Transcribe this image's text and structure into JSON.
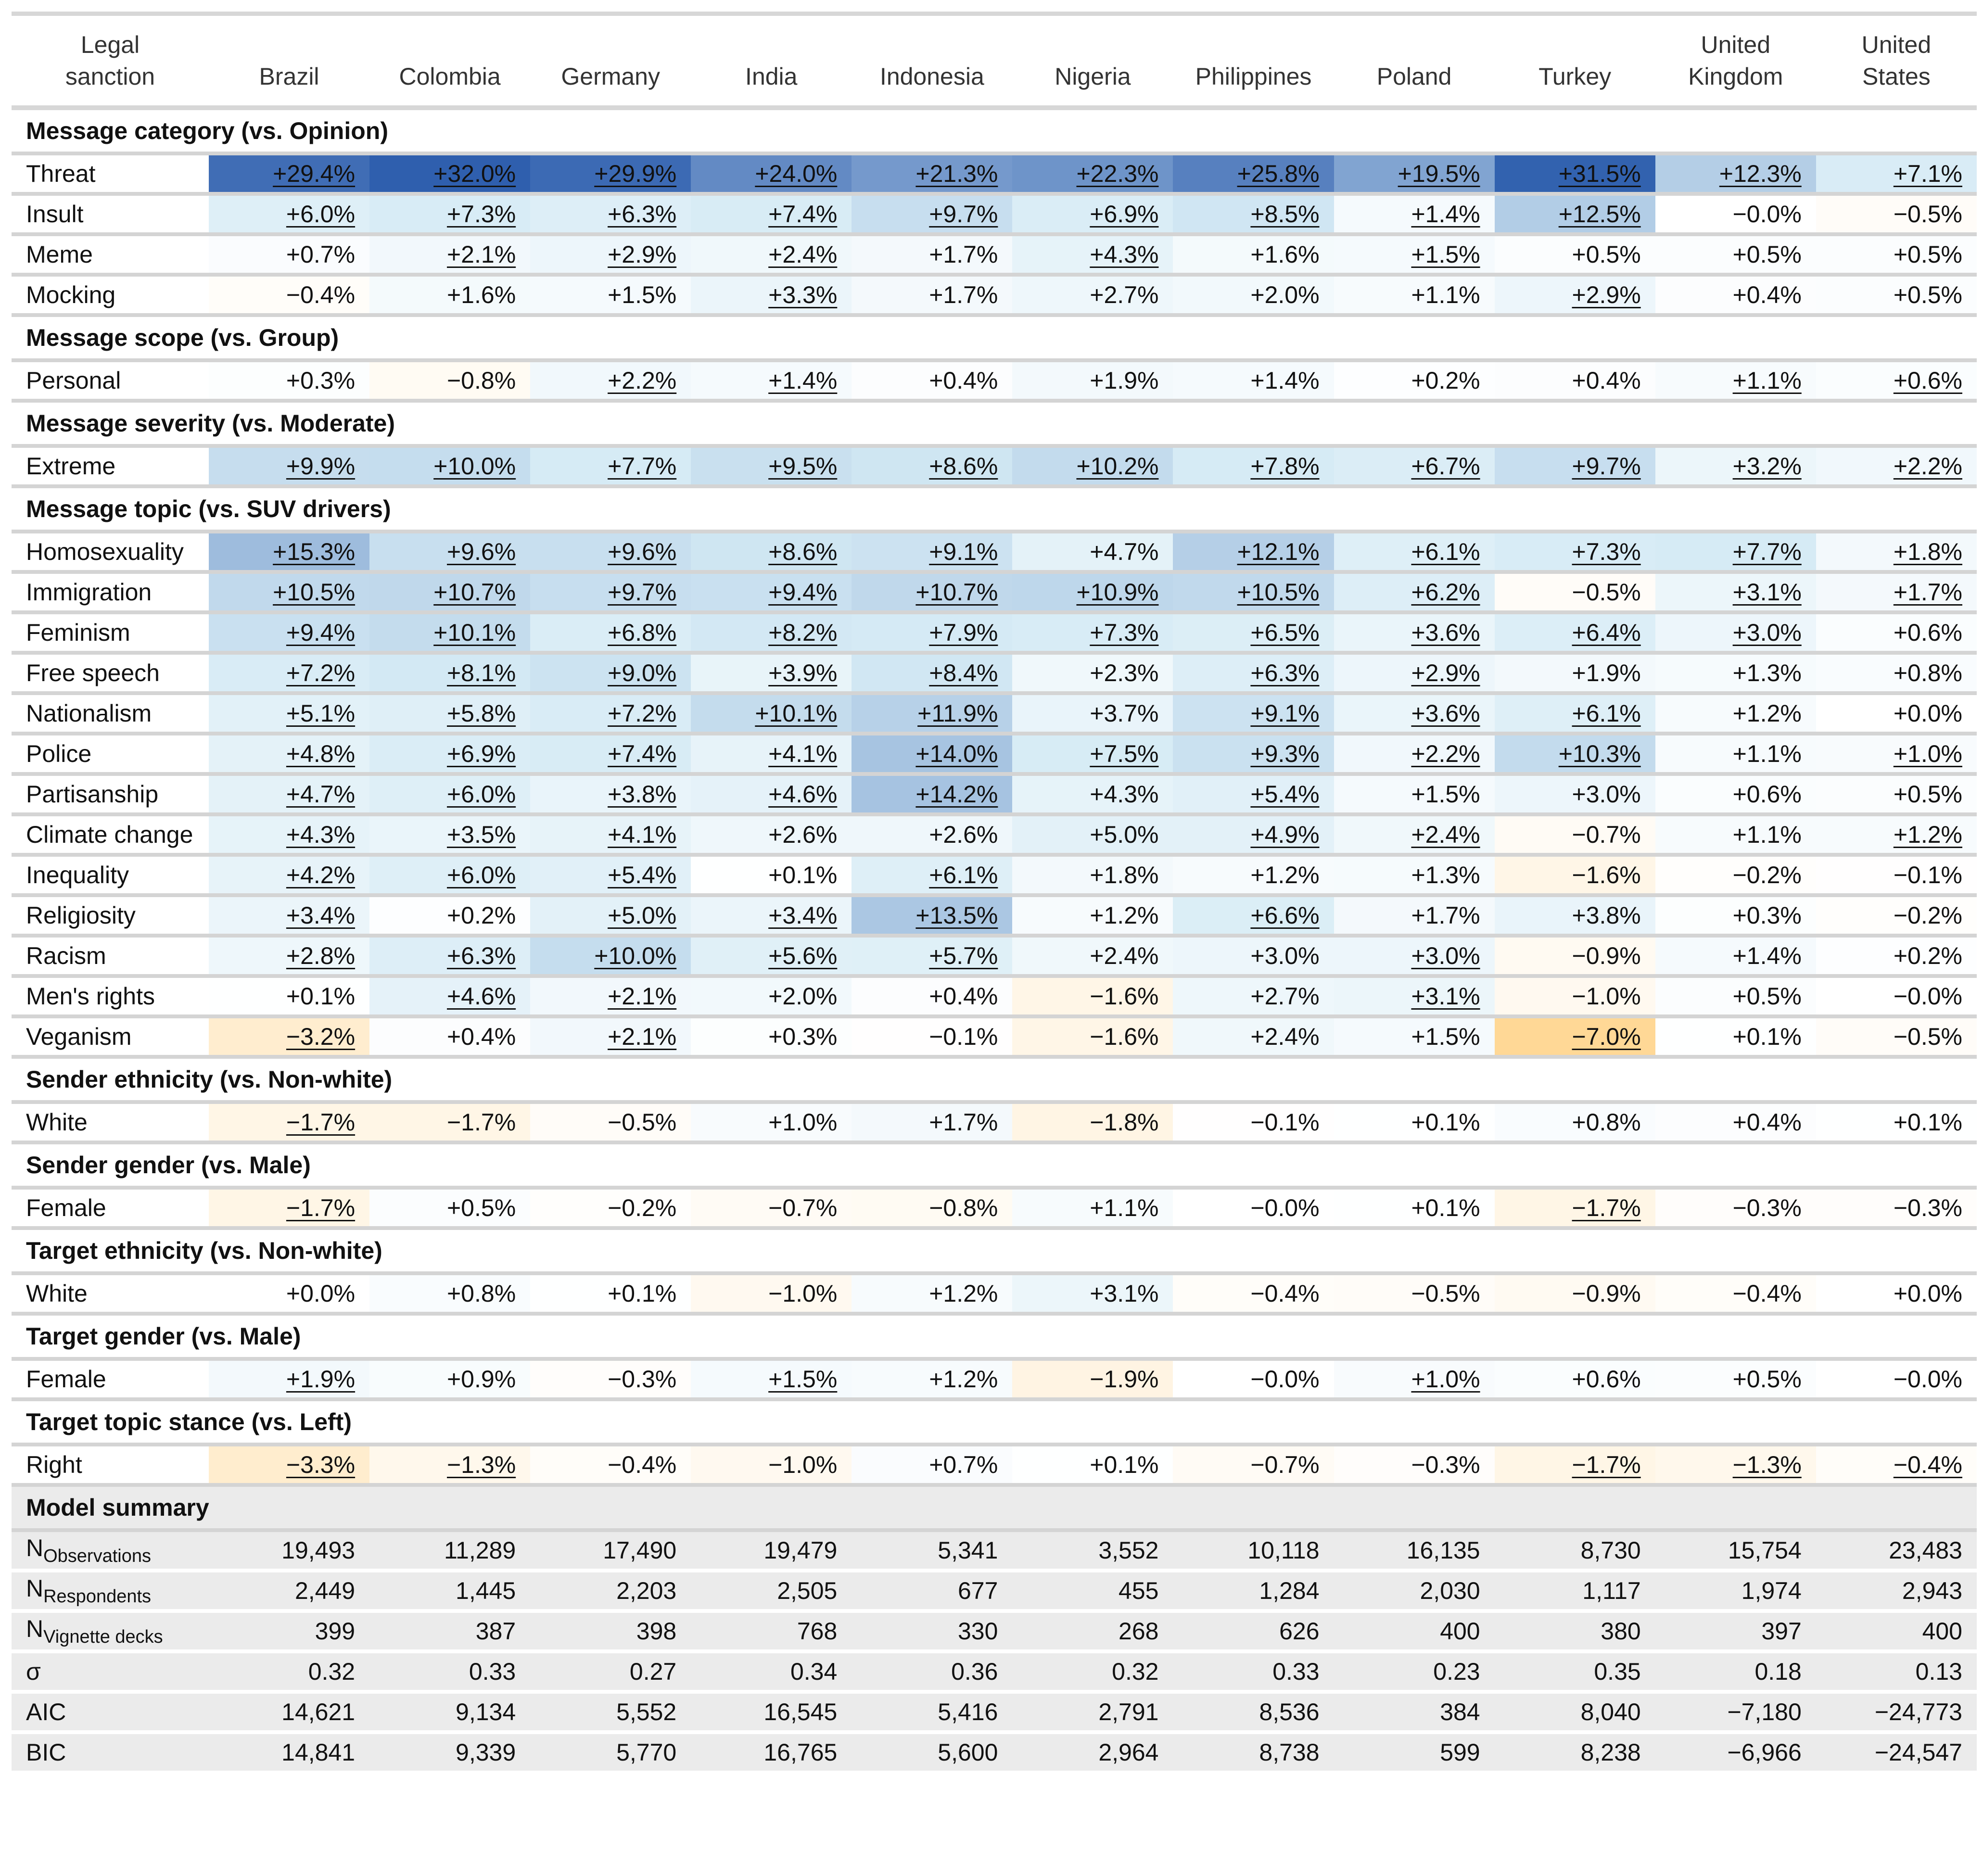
{
  "columns_header": {
    "label_col": "Legal sanction",
    "countries": [
      "Brazil",
      "Colombia",
      "Germany",
      "India",
      "Indonesia",
      "Nigeria",
      "Philippines",
      "Poland",
      "Turkey",
      "United Kingdom",
      "United States"
    ]
  },
  "sections": [
    {
      "title": "Message category (vs. Opinion)",
      "rows": [
        {
          "label": "Threat",
          "values": [
            "+29.4%",
            "+32.0%",
            "+29.9%",
            "+24.0%",
            "+21.3%",
            "+22.3%",
            "+25.8%",
            "+19.5%",
            "+31.5%",
            "+12.3%",
            "+7.1%"
          ],
          "sig": [
            1,
            1,
            1,
            1,
            1,
            1,
            1,
            1,
            1,
            1,
            1
          ]
        },
        {
          "label": "Insult",
          "values": [
            "+6.0%",
            "+7.3%",
            "+6.3%",
            "+7.4%",
            "+9.7%",
            "+6.9%",
            "+8.5%",
            "+1.4%",
            "+12.5%",
            "−0.0%",
            "−0.5%"
          ],
          "sig": [
            1,
            1,
            1,
            1,
            1,
            1,
            1,
            1,
            1,
            0,
            0
          ]
        },
        {
          "label": "Meme",
          "values": [
            "+0.7%",
            "+2.1%",
            "+2.9%",
            "+2.4%",
            "+1.7%",
            "+4.3%",
            "+1.6%",
            "+1.5%",
            "+0.5%",
            "+0.5%",
            "+0.5%"
          ],
          "sig": [
            0,
            1,
            1,
            1,
            0,
            1,
            0,
            1,
            0,
            0,
            0
          ]
        },
        {
          "label": "Mocking",
          "values": [
            "−0.4%",
            "+1.6%",
            "+1.5%",
            "+3.3%",
            "+1.7%",
            "+2.7%",
            "+2.0%",
            "+1.1%",
            "+2.9%",
            "+0.4%",
            "+0.5%"
          ],
          "sig": [
            0,
            0,
            0,
            1,
            0,
            0,
            0,
            0,
            1,
            0,
            0
          ]
        }
      ]
    },
    {
      "title": "Message scope (vs. Group)",
      "rows": [
        {
          "label": "Personal",
          "values": [
            "+0.3%",
            "−0.8%",
            "+2.2%",
            "+1.4%",
            "+0.4%",
            "+1.9%",
            "+1.4%",
            "+0.2%",
            "+0.4%",
            "+1.1%",
            "+0.6%"
          ],
          "sig": [
            0,
            0,
            1,
            1,
            0,
            0,
            0,
            0,
            0,
            1,
            1
          ]
        }
      ]
    },
    {
      "title": "Message severity (vs. Moderate)",
      "rows": [
        {
          "label": "Extreme",
          "values": [
            "+9.9%",
            "+10.0%",
            "+7.7%",
            "+9.5%",
            "+8.6%",
            "+10.2%",
            "+7.8%",
            "+6.7%",
            "+9.7%",
            "+3.2%",
            "+2.2%"
          ],
          "sig": [
            1,
            1,
            1,
            1,
            1,
            1,
            1,
            1,
            1,
            1,
            1
          ]
        }
      ]
    },
    {
      "title": "Message topic (vs. SUV drivers)",
      "rows": [
        {
          "label": "Homosexuality",
          "values": [
            "+15.3%",
            "+9.6%",
            "+9.6%",
            "+8.6%",
            "+9.1%",
            "+4.7%",
            "+12.1%",
            "+6.1%",
            "+7.3%",
            "+7.7%",
            "+1.8%"
          ],
          "sig": [
            1,
            1,
            1,
            1,
            1,
            0,
            1,
            1,
            1,
            1,
            1
          ]
        },
        {
          "label": "Immigration",
          "values": [
            "+10.5%",
            "+10.7%",
            "+9.7%",
            "+9.4%",
            "+10.7%",
            "+10.9%",
            "+10.5%",
            "+6.2%",
            "−0.5%",
            "+3.1%",
            "+1.7%"
          ],
          "sig": [
            1,
            1,
            1,
            1,
            1,
            1,
            1,
            1,
            0,
            1,
            1
          ]
        },
        {
          "label": "Feminism",
          "values": [
            "+9.4%",
            "+10.1%",
            "+6.8%",
            "+8.2%",
            "+7.9%",
            "+7.3%",
            "+6.5%",
            "+3.6%",
            "+6.4%",
            "+3.0%",
            "+0.6%"
          ],
          "sig": [
            1,
            1,
            1,
            1,
            1,
            1,
            1,
            1,
            1,
            1,
            0
          ]
        },
        {
          "label": "Free speech",
          "values": [
            "+7.2%",
            "+8.1%",
            "+9.0%",
            "+3.9%",
            "+8.4%",
            "+2.3%",
            "+6.3%",
            "+2.9%",
            "+1.9%",
            "+1.3%",
            "+0.8%"
          ],
          "sig": [
            1,
            1,
            1,
            1,
            1,
            0,
            1,
            1,
            0,
            0,
            0
          ]
        },
        {
          "label": "Nationalism",
          "values": [
            "+5.1%",
            "+5.8%",
            "+7.2%",
            "+10.1%",
            "+11.9%",
            "+3.7%",
            "+9.1%",
            "+3.6%",
            "+6.1%",
            "+1.2%",
            "+0.0%"
          ],
          "sig": [
            1,
            1,
            1,
            1,
            1,
            0,
            1,
            1,
            1,
            0,
            0
          ]
        },
        {
          "label": "Police",
          "values": [
            "+4.8%",
            "+6.9%",
            "+7.4%",
            "+4.1%",
            "+14.0%",
            "+7.5%",
            "+9.3%",
            "+2.2%",
            "+10.3%",
            "+1.1%",
            "+1.0%"
          ],
          "sig": [
            1,
            1,
            1,
            1,
            1,
            1,
            1,
            1,
            1,
            0,
            1
          ]
        },
        {
          "label": "Partisanship",
          "values": [
            "+4.7%",
            "+6.0%",
            "+3.8%",
            "+4.6%",
            "+14.2%",
            "+4.3%",
            "+5.4%",
            "+1.5%",
            "+3.0%",
            "+0.6%",
            "+0.5%"
          ],
          "sig": [
            1,
            1,
            1,
            1,
            1,
            0,
            1,
            0,
            0,
            0,
            0
          ]
        },
        {
          "label": "Climate change",
          "values": [
            "+4.3%",
            "+3.5%",
            "+4.1%",
            "+2.6%",
            "+2.6%",
            "+5.0%",
            "+4.9%",
            "+2.4%",
            "−0.7%",
            "+1.1%",
            "+1.2%"
          ],
          "sig": [
            1,
            1,
            1,
            0,
            0,
            0,
            1,
            1,
            0,
            0,
            1
          ]
        },
        {
          "label": "Inequality",
          "values": [
            "+4.2%",
            "+6.0%",
            "+5.4%",
            "+0.1%",
            "+6.1%",
            "+1.8%",
            "+1.2%",
            "+1.3%",
            "−1.6%",
            "−0.2%",
            "−0.1%"
          ],
          "sig": [
            1,
            1,
            1,
            0,
            1,
            0,
            0,
            0,
            0,
            0,
            0
          ]
        },
        {
          "label": "Religiosity",
          "values": [
            "+3.4%",
            "+0.2%",
            "+5.0%",
            "+3.4%",
            "+13.5%",
            "+1.2%",
            "+6.6%",
            "+1.7%",
            "+3.8%",
            "+0.3%",
            "−0.2%"
          ],
          "sig": [
            1,
            0,
            1,
            1,
            1,
            0,
            1,
            0,
            0,
            0,
            0
          ]
        },
        {
          "label": "Racism",
          "values": [
            "+2.8%",
            "+6.3%",
            "+10.0%",
            "+5.6%",
            "+5.7%",
            "+2.4%",
            "+3.0%",
            "+3.0%",
            "−0.9%",
            "+1.4%",
            "+0.2%"
          ],
          "sig": [
            1,
            1,
            1,
            1,
            1,
            0,
            0,
            1,
            0,
            0,
            0
          ]
        },
        {
          "label": "Men's rights",
          "values": [
            "+0.1%",
            "+4.6%",
            "+2.1%",
            "+2.0%",
            "+0.4%",
            "−1.6%",
            "+2.7%",
            "+3.1%",
            "−1.0%",
            "+0.5%",
            "−0.0%"
          ],
          "sig": [
            0,
            1,
            1,
            0,
            0,
            0,
            0,
            1,
            0,
            0,
            0
          ]
        },
        {
          "label": "Veganism",
          "values": [
            "−3.2%",
            "+0.4%",
            "+2.1%",
            "+0.3%",
            "−0.1%",
            "−1.6%",
            "+2.4%",
            "+1.5%",
            "−7.0%",
            "+0.1%",
            "−0.5%"
          ],
          "sig": [
            1,
            0,
            1,
            0,
            0,
            0,
            0,
            0,
            1,
            0,
            0
          ]
        }
      ]
    },
    {
      "title": "Sender ethnicity (vs. Non-white)",
      "rows": [
        {
          "label": "White",
          "values": [
            "−1.7%",
            "−1.7%",
            "−0.5%",
            "+1.0%",
            "+1.7%",
            "−1.8%",
            "−0.1%",
            "+0.1%",
            "+0.8%",
            "+0.4%",
            "+0.1%"
          ],
          "sig": [
            1,
            0,
            0,
            0,
            0,
            0,
            0,
            0,
            0,
            0,
            0
          ]
        }
      ]
    },
    {
      "title": "Sender gender (vs. Male)",
      "rows": [
        {
          "label": "Female",
          "values": [
            "−1.7%",
            "+0.5%",
            "−0.2%",
            "−0.7%",
            "−0.8%",
            "+1.1%",
            "−0.0%",
            "+0.1%",
            "−1.7%",
            "−0.3%",
            "−0.3%"
          ],
          "sig": [
            1,
            0,
            0,
            0,
            0,
            0,
            0,
            0,
            1,
            0,
            0
          ]
        }
      ]
    },
    {
      "title": "Target ethnicity (vs. Non-white)",
      "rows": [
        {
          "label": "White",
          "values": [
            "+0.0%",
            "+0.8%",
            "+0.1%",
            "−1.0%",
            "+1.2%",
            "+3.1%",
            "−0.4%",
            "−0.5%",
            "−0.9%",
            "−0.4%",
            "+0.0%"
          ],
          "sig": [
            0,
            0,
            0,
            0,
            0,
            0,
            0,
            0,
            0,
            0,
            0
          ]
        }
      ]
    },
    {
      "title": "Target gender (vs. Male)",
      "rows": [
        {
          "label": "Female",
          "values": [
            "+1.9%",
            "+0.9%",
            "−0.3%",
            "+1.5%",
            "+1.2%",
            "−1.9%",
            "−0.0%",
            "+1.0%",
            "+0.6%",
            "+0.5%",
            "−0.0%"
          ],
          "sig": [
            1,
            0,
            0,
            1,
            0,
            0,
            0,
            1,
            0,
            0,
            0
          ]
        }
      ]
    },
    {
      "title": "Target topic stance (vs. Left)",
      "rows": [
        {
          "label": "Right",
          "values": [
            "−3.3%",
            "−1.3%",
            "−0.4%",
            "−1.0%",
            "+0.7%",
            "+0.1%",
            "−0.7%",
            "−0.3%",
            "−1.7%",
            "−1.3%",
            "−0.4%"
          ],
          "sig": [
            1,
            1,
            0,
            0,
            0,
            0,
            0,
            0,
            1,
            1,
            1
          ]
        }
      ]
    }
  ],
  "summary": {
    "title": "Model summary",
    "rows": [
      {
        "label": "N",
        "sub": "Observations",
        "values": [
          "19,493",
          "11,289",
          "17,490",
          "19,479",
          "5,341",
          "3,552",
          "10,118",
          "16,135",
          "8,730",
          "15,754",
          "23,483"
        ]
      },
      {
        "label": "N",
        "sub": "Respondents",
        "values": [
          "2,449",
          "1,445",
          "2,203",
          "2,505",
          "677",
          "455",
          "1,284",
          "2,030",
          "1,117",
          "1,974",
          "2,943"
        ]
      },
      {
        "label": "N",
        "sub": "Vignette decks",
        "values": [
          "399",
          "387",
          "398",
          "768",
          "330",
          "268",
          "626",
          "400",
          "380",
          "397",
          "400"
        ]
      },
      {
        "label": "σ",
        "sub": "",
        "values": [
          "0.32",
          "0.33",
          "0.27",
          "0.34",
          "0.36",
          "0.32",
          "0.33",
          "0.23",
          "0.35",
          "0.18",
          "0.13"
        ]
      },
      {
        "label": "AIC",
        "sub": "",
        "values": [
          "14,621",
          "9,134",
          "5,552",
          "16,545",
          "5,416",
          "2,791",
          "8,536",
          "384",
          "8,040",
          "−7,180",
          "−24,773"
        ]
      },
      {
        "label": "BIC",
        "sub": "",
        "values": [
          "14,841",
          "9,339",
          "5,770",
          "16,765",
          "5,600",
          "2,964",
          "8,738",
          "599",
          "8,238",
          "−6,966",
          "−24,547"
        ]
      }
    ]
  },
  "colors": {
    "positive": "#2f5fae",
    "negative": "#ffa726",
    "rule": "#d4d4d4",
    "summary_bg": "#ebebeb"
  }
}
